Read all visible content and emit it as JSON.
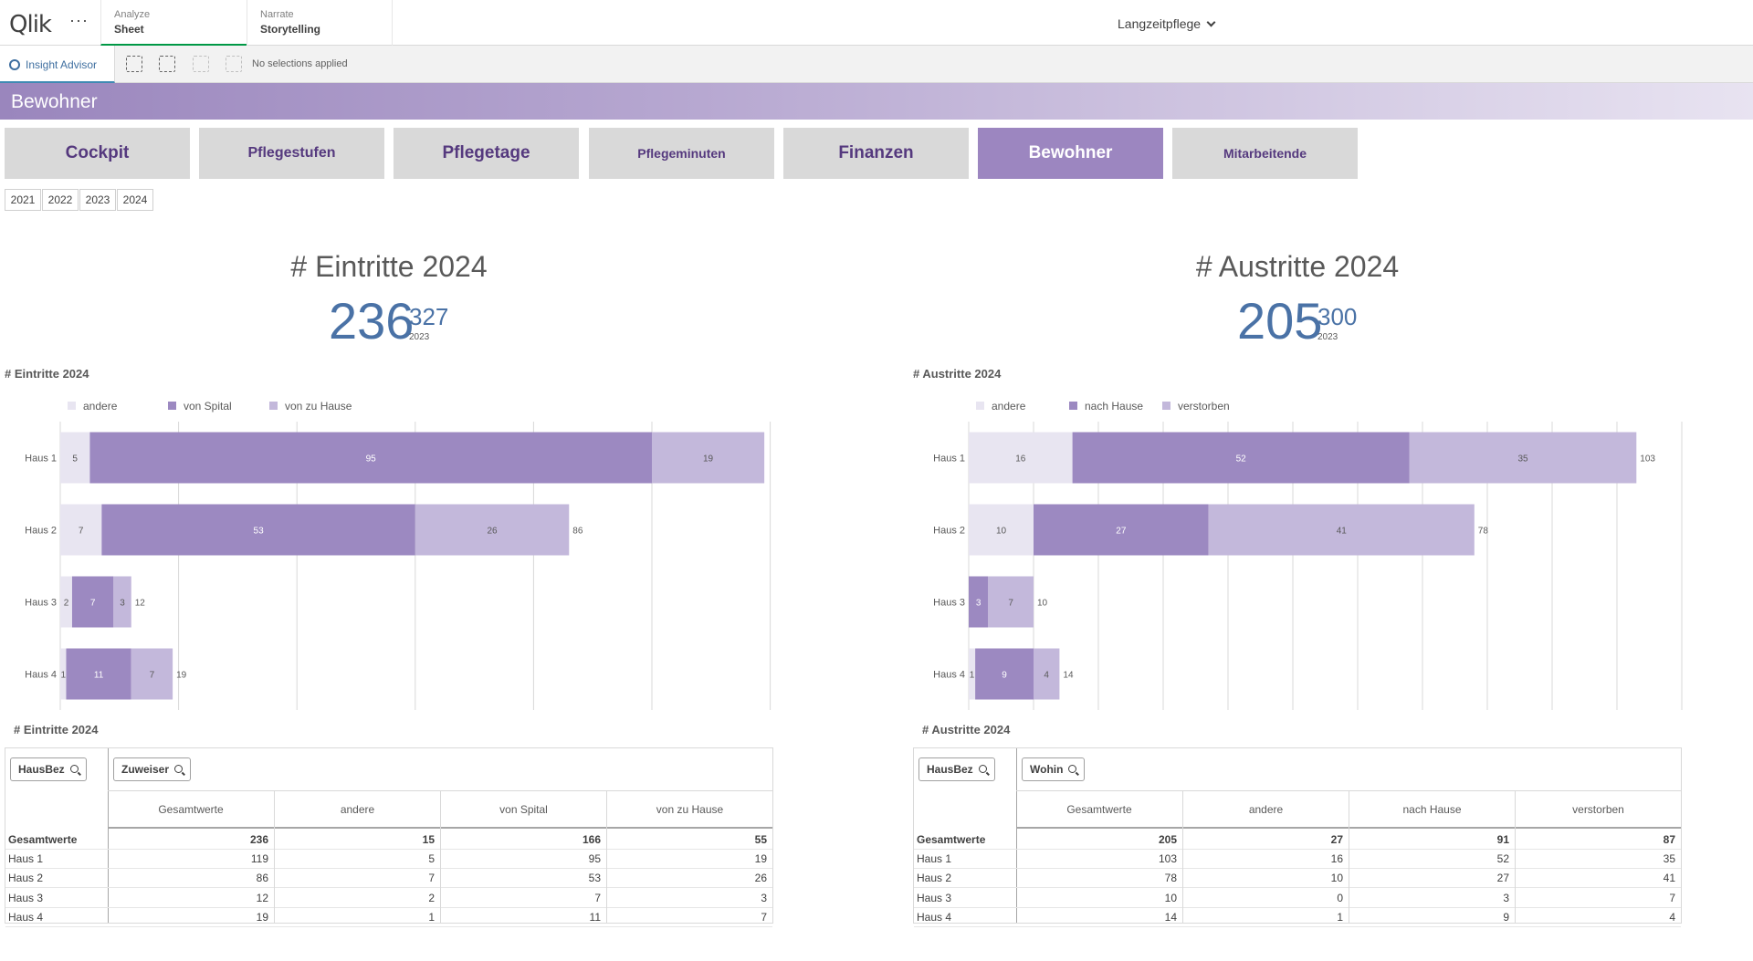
{
  "topbar": {
    "logo": "Qlik",
    "more": "···",
    "tabs": [
      {
        "sub": "Analyze",
        "main": "Sheet"
      },
      {
        "sub": "Narrate",
        "main": "Storytelling"
      }
    ],
    "app_name": "Langzeitpflege"
  },
  "selbar": {
    "insight_label": "Insight Advisor",
    "no_selections": "No selections applied"
  },
  "sheet": {
    "title": "Bewohner"
  },
  "nav_buttons": [
    "Cockpit",
    "Pflegestufen",
    "Pflegetage",
    "Pflegeminuten",
    "Finanzen",
    "Bewohner",
    "Mitarbeitende"
  ],
  "active_nav": "Bewohner",
  "years": [
    "2021",
    "2022",
    "2023",
    "2024"
  ],
  "kpis": {
    "left": {
      "title": "# Eintritte 2024",
      "value": "236",
      "compare": "327",
      "compare_year": "2023"
    },
    "right": {
      "title": "# Austritte 2024",
      "value": "205",
      "compare": "300",
      "compare_year": "2023"
    }
  },
  "colors": {
    "andere": "#e8e5f1",
    "main": "#9c89c1",
    "second": "#c3b8db",
    "kpi": "#4a72a6",
    "active_nav": "#9c86c0"
  },
  "chart_data": [
    {
      "type": "bar",
      "orientation": "horizontal",
      "stacked": true,
      "title": "# Eintritte 2024",
      "categories": [
        "Haus 1",
        "Haus 2",
        "Haus 3",
        "Haus 4"
      ],
      "series": [
        {
          "name": "andere",
          "values": [
            5,
            7,
            2,
            1
          ]
        },
        {
          "name": "von Spital",
          "values": [
            95,
            53,
            7,
            11
          ]
        },
        {
          "name": "von zu Hause",
          "values": [
            19,
            26,
            3,
            7
          ]
        }
      ],
      "totals": [
        119,
        86,
        12,
        19
      ],
      "xlim": [
        0,
        120
      ],
      "legend": "top-left",
      "grid": true
    },
    {
      "type": "bar",
      "orientation": "horizontal",
      "stacked": true,
      "title": "# Austritte 2024",
      "categories": [
        "Haus 1",
        "Haus 2",
        "Haus 3",
        "Haus 4"
      ],
      "series": [
        {
          "name": "andere",
          "values": [
            16,
            10,
            0,
            1
          ]
        },
        {
          "name": "nach Hause",
          "values": [
            52,
            27,
            3,
            9
          ]
        },
        {
          "name": "verstorben",
          "values": [
            35,
            41,
            7,
            4
          ]
        }
      ],
      "totals": [
        103,
        78,
        10,
        14
      ],
      "xlim": [
        0,
        110
      ],
      "legend": "top-left",
      "grid": true
    }
  ],
  "tables": {
    "left": {
      "title": "# Eintritte 2024",
      "dim1": "HausBez",
      "dim2": "Zuweiser",
      "headers": [
        "Gesamtwerte",
        "andere",
        "von Spital",
        "von zu Hause"
      ],
      "rows": [
        {
          "label": "Gesamtwerte",
          "values": [
            "236",
            "15",
            "166",
            "55"
          ]
        },
        {
          "label": "Haus 1",
          "values": [
            "119",
            "5",
            "95",
            "19"
          ]
        },
        {
          "label": "Haus 2",
          "values": [
            "86",
            "7",
            "53",
            "26"
          ]
        },
        {
          "label": "Haus 3",
          "values": [
            "12",
            "2",
            "7",
            "3"
          ]
        },
        {
          "label": "Haus 4",
          "values": [
            "19",
            "1",
            "11",
            "7"
          ]
        }
      ]
    },
    "right": {
      "title": "# Austritte 2024",
      "dim1": "HausBez",
      "dim2": "Wohin",
      "headers": [
        "Gesamtwerte",
        "andere",
        "nach Hause",
        "verstorben"
      ],
      "rows": [
        {
          "label": "Gesamtwerte",
          "values": [
            "205",
            "27",
            "91",
            "87"
          ]
        },
        {
          "label": "Haus 1",
          "values": [
            "103",
            "16",
            "52",
            "35"
          ]
        },
        {
          "label": "Haus 2",
          "values": [
            "78",
            "10",
            "27",
            "41"
          ]
        },
        {
          "label": "Haus 3",
          "values": [
            "10",
            "0",
            "3",
            "7"
          ]
        },
        {
          "label": "Haus 4",
          "values": [
            "14",
            "1",
            "9",
            "4"
          ]
        }
      ]
    }
  }
}
